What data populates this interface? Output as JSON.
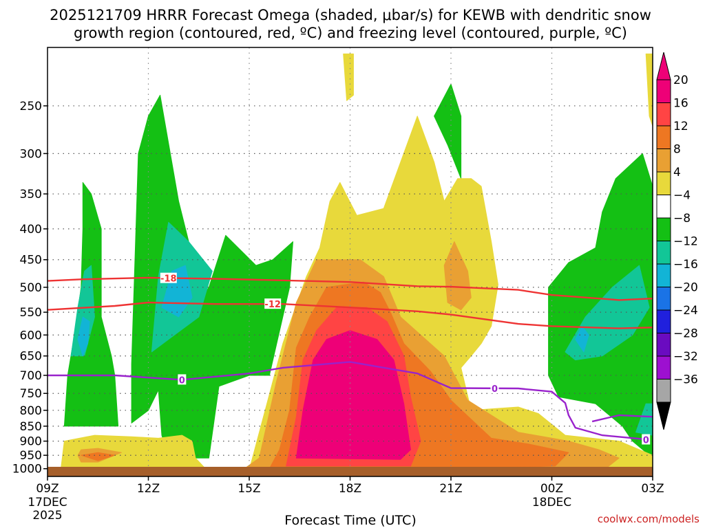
{
  "chart_data": {
    "type": "heatmap",
    "title_line1": "2025121709 HRRR Forecast Omega (shaded, μbar/s) for KEWB with dendritic snow",
    "title_line2": "growth region (contoured, red, ºC) and freezing level (contoured, purple, ºC)",
    "xlabel": "Forecast Time (UTC)",
    "credit": "coolwx.com/models",
    "x_hours": [
      0,
      3,
      6,
      9,
      12,
      15,
      18
    ],
    "x_ticks": [
      {
        "hour": 0,
        "label": "09Z",
        "line2": "17DEC",
        "line3": "2025"
      },
      {
        "hour": 3,
        "label": "12Z"
      },
      {
        "hour": 6,
        "label": "15Z"
      },
      {
        "hour": 9,
        "label": "18Z"
      },
      {
        "hour": 12,
        "label": "21Z"
      },
      {
        "hour": 15,
        "label": "00Z",
        "line2": "18DEC"
      },
      {
        "hour": 18,
        "label": "03Z"
      }
    ],
    "y_ticks": [
      "250",
      "300",
      "350",
      "400",
      "450",
      "500",
      "550",
      "600",
      "650",
      "700",
      "750",
      "800",
      "850",
      "900",
      "950",
      "1000"
    ],
    "y_range_hpa": [
      200,
      1030
    ],
    "colorbar": {
      "labels": [
        "20",
        "16",
        "12",
        "8",
        "4",
        "−4",
        "−8",
        "−12",
        "−16",
        "−20",
        "−24",
        "−28",
        "−32",
        "−36"
      ],
      "colors": [
        "#ee0077",
        "#ff4444",
        "#ee7722",
        "#e9a033",
        "#e8d93b",
        "#ffffff",
        "#14c014",
        "#12c697",
        "#12b4d6",
        "#1a73e6",
        "#2020dd",
        "#6a0bc0",
        "#9d10d0",
        "#a6a6a6"
      ]
    },
    "contours": {
      "dendritic_minus18": {
        "label": "-18",
        "color": "#ee3333",
        "points": [
          [
            0,
            488
          ],
          [
            1,
            485
          ],
          [
            3,
            482
          ],
          [
            5,
            484
          ],
          [
            7,
            487
          ],
          [
            9,
            490
          ],
          [
            11,
            498
          ],
          [
            12,
            499
          ],
          [
            14,
            505
          ],
          [
            15,
            515
          ],
          [
            17,
            525
          ],
          [
            18,
            522
          ]
        ]
      },
      "dendritic_minus12": {
        "label": "-12",
        "color": "#ee3333",
        "points": [
          [
            0,
            545
          ],
          [
            2,
            537
          ],
          [
            3,
            530
          ],
          [
            5,
            533
          ],
          [
            7,
            533
          ],
          [
            9,
            540
          ],
          [
            11,
            548
          ],
          [
            12,
            555
          ],
          [
            14,
            575
          ],
          [
            15,
            580
          ],
          [
            17,
            585
          ],
          [
            18,
            583
          ]
        ]
      },
      "freezing_0": {
        "label": "0",
        "color": "#9922cc",
        "points": [
          [
            0,
            700
          ],
          [
            2,
            700
          ],
          [
            4,
            712
          ],
          [
            6,
            695
          ],
          [
            7,
            680
          ],
          [
            9,
            665
          ],
          [
            11,
            695
          ],
          [
            12,
            735
          ],
          [
            14,
            736
          ],
          [
            15,
            745
          ],
          [
            15.4,
            778
          ],
          [
            15.5,
            815
          ],
          [
            15.7,
            855
          ],
          [
            16.5,
            880
          ],
          [
            17.9,
            895
          ]
        ]
      },
      "freezing_0_b": {
        "label": "0",
        "color": "#9922cc",
        "points": [
          [
            16.2,
            835
          ],
          [
            17,
            815
          ],
          [
            18,
            820
          ]
        ]
      }
    },
    "omega_regions": [
      {
        "value_bin": "-8 to -4",
        "color": "#14c014",
        "points": [
          [
            0.6,
            700
          ],
          [
            0.8,
            600
          ],
          [
            1.0,
            500
          ],
          [
            1.05,
            400
          ],
          [
            1.05,
            335
          ],
          [
            1.3,
            350
          ],
          [
            1.6,
            400
          ],
          [
            1.6,
            560
          ],
          [
            1.9,
            650
          ],
          [
            2.0,
            700
          ],
          [
            2.1,
            850
          ],
          [
            0.5,
            850
          ]
        ]
      },
      {
        "value_bin": "-8 to -4",
        "color": "#14c014",
        "points": [
          [
            2.5,
            670
          ],
          [
            2.6,
            450
          ],
          [
            2.7,
            300
          ],
          [
            3.0,
            260
          ],
          [
            3.35,
            240
          ],
          [
            3.9,
            360
          ],
          [
            4.2,
            420
          ],
          [
            4.6,
            520
          ],
          [
            4.8,
            500
          ],
          [
            5.3,
            410
          ],
          [
            6.2,
            460
          ],
          [
            6.7,
            450
          ],
          [
            7.3,
            420
          ],
          [
            7.2,
            500
          ],
          [
            6.6,
            700
          ],
          [
            6.0,
            700
          ],
          [
            5.1,
            730
          ],
          [
            4.8,
            960
          ],
          [
            3.6,
            960
          ],
          [
            3.4,
            880
          ],
          [
            3.3,
            740
          ],
          [
            3.0,
            800
          ],
          [
            2.5,
            840
          ]
        ]
      },
      {
        "value_bin": "-8 to -4",
        "color": "#14c014",
        "points": [
          [
            11.5,
            260
          ],
          [
            12,
            230
          ],
          [
            12.3,
            260
          ],
          [
            12.3,
            330
          ],
          [
            11.9,
            290
          ]
        ]
      },
      {
        "value_bin": "-8 to -4",
        "color": "#14c014",
        "points": [
          [
            14.9,
            500
          ],
          [
            15.5,
            455
          ],
          [
            16.3,
            430
          ],
          [
            16.5,
            375
          ],
          [
            16.9,
            330
          ],
          [
            17.7,
            300
          ],
          [
            18,
            340
          ],
          [
            18,
            960
          ],
          [
            17.4,
            900
          ],
          [
            17.1,
            850
          ],
          [
            16.3,
            780
          ],
          [
            15.2,
            760
          ],
          [
            14.9,
            700
          ]
        ]
      },
      {
        "value_bin": "-12 to -8",
        "color": "#12c697",
        "points": [
          [
            0.7,
            650
          ],
          [
            0.9,
            540
          ],
          [
            1.1,
            470
          ],
          [
            1.3,
            460
          ],
          [
            1.4,
            560
          ],
          [
            1.1,
            650
          ]
        ]
      },
      {
        "value_bin": "-12 to -8",
        "color": "#12c697",
        "points": [
          [
            3.1,
            640
          ],
          [
            3.3,
            480
          ],
          [
            3.6,
            390
          ],
          [
            4.2,
            420
          ],
          [
            4.9,
            470
          ],
          [
            4.5,
            560
          ],
          [
            3.6,
            610
          ]
        ]
      },
      {
        "value_bin": "-12 to -8",
        "color": "#12c697",
        "points": [
          [
            15.4,
            640
          ],
          [
            16.0,
            560
          ],
          [
            16.8,
            500
          ],
          [
            17.6,
            460
          ],
          [
            17.9,
            540
          ],
          [
            17.4,
            600
          ],
          [
            16.5,
            650
          ],
          [
            15.7,
            660
          ]
        ]
      },
      {
        "value_bin": "-12 to -8",
        "color": "#12c697",
        "points": [
          [
            17.5,
            870
          ],
          [
            17.8,
            780
          ],
          [
            18,
            780
          ],
          [
            18,
            880
          ]
        ]
      },
      {
        "value_bin": "-16 to -12",
        "color": "#12b4d6",
        "points": [
          [
            0.9,
            610
          ],
          [
            1.05,
            560
          ],
          [
            1.25,
            570
          ],
          [
            1.2,
            620
          ],
          [
            1.05,
            650
          ]
        ]
      },
      {
        "value_bin": "-16 to -12",
        "color": "#12b4d6",
        "points": [
          [
            3.4,
            540
          ],
          [
            3.7,
            470
          ],
          [
            4.1,
            460
          ],
          [
            4.3,
            520
          ],
          [
            3.9,
            560
          ]
        ]
      },
      {
        "value_bin": "-16 to -12",
        "color": "#12b4d6",
        "points": [
          [
            15.7,
            610
          ],
          [
            15.9,
            580
          ],
          [
            16.1,
            600
          ],
          [
            15.95,
            640
          ]
        ]
      },
      {
        "value_bin": "4 to 8",
        "color": "#e8d93b",
        "points": [
          [
            0.4,
            1000
          ],
          [
            0.5,
            900
          ],
          [
            1.4,
            880
          ],
          [
            2.5,
            885
          ],
          [
            3.3,
            890
          ],
          [
            4.0,
            880
          ],
          [
            4.3,
            900
          ],
          [
            4.4,
            960
          ],
          [
            4.7,
            1000
          ]
        ]
      },
      {
        "value_bin": "4 to 8",
        "color": "#e8d93b",
        "points": [
          [
            5.0,
            1010
          ],
          [
            6.0,
            1005
          ],
          [
            6.3,
            870
          ],
          [
            6.5,
            790
          ],
          [
            7.0,
            620
          ],
          [
            7.7,
            480
          ],
          [
            8.1,
            430
          ],
          [
            8.4,
            360
          ],
          [
            8.7,
            335
          ],
          [
            9.2,
            380
          ],
          [
            10.0,
            370
          ],
          [
            11.0,
            260
          ],
          [
            11.5,
            310
          ],
          [
            11.8,
            360
          ],
          [
            12.2,
            330
          ],
          [
            12.6,
            330
          ],
          [
            12.9,
            340
          ],
          [
            13.2,
            420
          ],
          [
            13.4,
            495
          ],
          [
            13.2,
            580
          ],
          [
            12.9,
            620
          ],
          [
            12.6,
            650
          ],
          [
            12.3,
            680
          ],
          [
            12.6,
            800
          ],
          [
            13.3,
            795
          ],
          [
            14.0,
            790
          ],
          [
            14.6,
            810
          ],
          [
            15.4,
            880
          ],
          [
            17.0,
            900
          ],
          [
            18.0,
            950
          ],
          [
            18.0,
            1010
          ]
        ]
      },
      {
        "value_bin": "4 to 8",
        "color": "#e8d93b",
        "points": [
          [
            8.8,
            205
          ],
          [
            9.1,
            205
          ],
          [
            9.1,
            240
          ],
          [
            8.9,
            245
          ]
        ]
      },
      {
        "value_bin": "4 to 8",
        "color": "#e8d93b",
        "points": [
          [
            17.8,
            205
          ],
          [
            18,
            205
          ],
          [
            18,
            270
          ],
          [
            17.9,
            260
          ]
        ]
      },
      {
        "value_bin": "8 to 12",
        "color": "#e9a033",
        "points": [
          [
            5.8,
            1005
          ],
          [
            6.3,
            960
          ],
          [
            6.8,
            720
          ],
          [
            7.4,
            530
          ],
          [
            8.0,
            450
          ],
          [
            9.3,
            450
          ],
          [
            10.0,
            480
          ],
          [
            10.5,
            560
          ],
          [
            11.1,
            600
          ],
          [
            11.8,
            650
          ],
          [
            12.5,
            770
          ],
          [
            14.0,
            870
          ],
          [
            15.5,
            900
          ],
          [
            16.4,
            930
          ],
          [
            17.0,
            960
          ],
          [
            16.5,
            1010
          ]
        ]
      },
      {
        "value_bin": "8 to 12",
        "color": "#e9a033",
        "points": [
          [
            11.8,
            460
          ],
          [
            12.1,
            420
          ],
          [
            12.5,
            470
          ],
          [
            12.6,
            520
          ],
          [
            12.3,
            545
          ],
          [
            11.9,
            530
          ]
        ]
      },
      {
        "value_bin": "8 to 12",
        "color": "#e9a033",
        "points": [
          [
            0.9,
            950
          ],
          [
            1.0,
            930
          ],
          [
            1.5,
            925
          ],
          [
            2.2,
            940
          ],
          [
            1.5,
            975
          ],
          [
            1.0,
            975
          ]
        ]
      },
      {
        "value_bin": "12 to 16",
        "color": "#ee7722",
        "points": [
          [
            6.6,
            1000
          ],
          [
            6.9,
            930
          ],
          [
            7.2,
            800
          ],
          [
            7.4,
            630
          ],
          [
            7.8,
            560
          ],
          [
            8.3,
            500
          ],
          [
            9.4,
            490
          ],
          [
            9.9,
            510
          ],
          [
            10.2,
            550
          ],
          [
            10.6,
            620
          ],
          [
            11.4,
            690
          ],
          [
            12.0,
            770
          ],
          [
            13.2,
            890
          ],
          [
            14.3,
            910
          ],
          [
            15.5,
            940
          ],
          [
            15.1,
            990
          ],
          [
            11.0,
            1005
          ]
        ]
      },
      {
        "value_bin": "12 to 16",
        "color": "#ee7722",
        "points": [
          [
            1.0,
            950
          ],
          [
            1.5,
            940
          ],
          [
            2.0,
            950
          ],
          [
            1.5,
            970
          ]
        ]
      },
      {
        "value_bin": "16 to 20",
        "color": "#ff4444",
        "points": [
          [
            7.1,
            990
          ],
          [
            7.4,
            820
          ],
          [
            7.6,
            660
          ],
          [
            8.0,
            590
          ],
          [
            8.6,
            540
          ],
          [
            9.5,
            540
          ],
          [
            10.1,
            570
          ],
          [
            10.6,
            650
          ],
          [
            10.8,
            760
          ],
          [
            11.1,
            900
          ],
          [
            10.8,
            990
          ]
        ]
      },
      {
        "value_bin": "> 20",
        "color": "#ee0077",
        "points": [
          [
            7.4,
            960
          ],
          [
            7.6,
            800
          ],
          [
            7.9,
            660
          ],
          [
            8.3,
            610
          ],
          [
            9.0,
            590
          ],
          [
            9.8,
            610
          ],
          [
            10.3,
            660
          ],
          [
            10.6,
            780
          ],
          [
            10.8,
            930
          ],
          [
            10.5,
            965
          ]
        ]
      }
    ]
  }
}
